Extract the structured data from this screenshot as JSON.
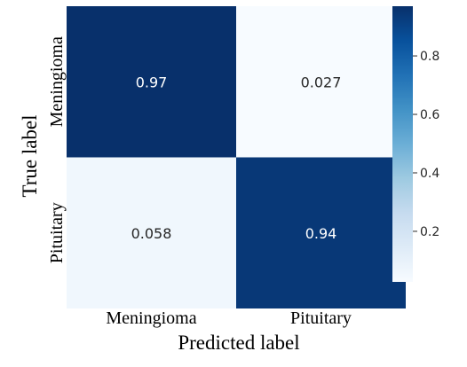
{
  "chart_data": {
    "type": "heatmap",
    "title": "",
    "xlabel": "Predicted label",
    "ylabel": "True label",
    "x_categories": [
      "Meningioma",
      "Pituitary"
    ],
    "y_categories": [
      "Meningioma",
      "Pituitary"
    ],
    "values": [
      [
        0.97,
        0.027
      ],
      [
        0.058,
        0.94
      ]
    ],
    "cell_labels": [
      [
        "0.97",
        "0.027"
      ],
      [
        "0.058",
        "0.94"
      ]
    ],
    "colormap": "Blues",
    "colorbar": {
      "min": 0.027,
      "max": 0.97,
      "ticks": [
        0.2,
        0.4,
        0.6,
        0.8
      ],
      "tick_labels": [
        "0.2",
        "0.4",
        "0.6",
        "0.8"
      ]
    },
    "colors": {
      "low": "#f7fbff",
      "high": "#08306b"
    }
  }
}
